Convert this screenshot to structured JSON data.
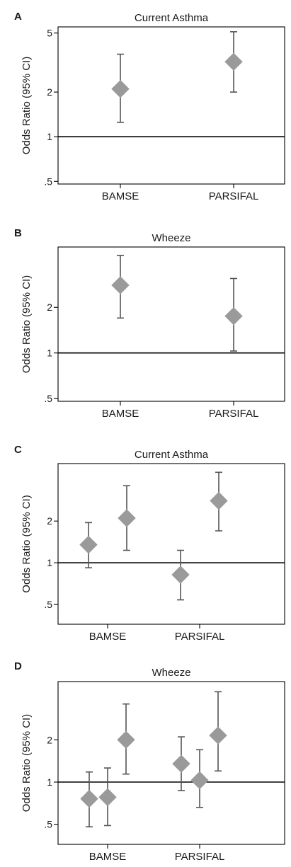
{
  "figure": {
    "ylabel": "Odds Ratio (95% CI)",
    "colors": {
      "marker": "#9a9a9a",
      "whisker": "#555555",
      "axis": "#000000",
      "reference_line": "#000000"
    }
  },
  "chart_data": [
    {
      "panel": "A",
      "type": "scatter",
      "style": "forest-plot (diamond point estimate with 95% CI whiskers)",
      "title": "Current Asthma",
      "ylabel": "Odds Ratio (95% CI)",
      "yscale": "log",
      "ylim": [
        0.48,
        5.5
      ],
      "yticks": [
        0.5,
        1,
        2,
        5
      ],
      "yticklabels": [
        ".5",
        "1",
        "2",
        "5"
      ],
      "reference_line": 1,
      "categories": [
        "BAMSE",
        "PARSIFAL"
      ],
      "points": [
        {
          "category": "BAMSE",
          "offset": 0,
          "or": 2.1,
          "lower": 1.25,
          "upper": 3.6
        },
        {
          "category": "PARSIFAL",
          "offset": 0,
          "or": 3.2,
          "lower": 2.0,
          "upper": 5.1
        }
      ]
    },
    {
      "panel": "B",
      "type": "scatter",
      "style": "forest-plot (diamond point estimate with 95% CI whiskers)",
      "title": "Wheeze",
      "ylabel": "Odds Ratio (95% CI)",
      "yscale": "log",
      "ylim": [
        0.48,
        5.0
      ],
      "yticks": [
        0.5,
        1,
        2
      ],
      "yticklabels": [
        ".5",
        "1",
        "2"
      ],
      "reference_line": 1,
      "categories": [
        "BAMSE",
        "PARSIFAL"
      ],
      "points": [
        {
          "category": "BAMSE",
          "offset": 0,
          "or": 2.8,
          "lower": 1.7,
          "upper": 4.4
        },
        {
          "category": "PARSIFAL",
          "offset": 0,
          "or": 1.75,
          "lower": 1.03,
          "upper": 3.1
        }
      ]
    },
    {
      "panel": "C",
      "type": "scatter",
      "style": "forest-plot (diamond point estimate with 95% CI whiskers)",
      "title": "Current Asthma",
      "ylabel": "Odds Ratio (95% CI)",
      "yscale": "log",
      "ylim": [
        0.36,
        5.2
      ],
      "yticks": [
        0.5,
        1,
        2
      ],
      "yticklabels": [
        ".5",
        "1",
        "2"
      ],
      "reference_line": 1,
      "categories": [
        "BAMSE",
        "PARSIFAL"
      ],
      "points": [
        {
          "category": "BAMSE",
          "offset": -1,
          "or": 1.35,
          "lower": 0.92,
          "upper": 1.95
        },
        {
          "category": "BAMSE",
          "offset": 1,
          "or": 2.1,
          "lower": 1.23,
          "upper": 3.6
        },
        {
          "category": "PARSIFAL",
          "offset": -1,
          "or": 0.82,
          "lower": 0.54,
          "upper": 1.23
        },
        {
          "category": "PARSIFAL",
          "offset": 1,
          "or": 2.8,
          "lower": 1.7,
          "upper": 4.5
        }
      ]
    },
    {
      "panel": "D",
      "type": "scatter",
      "style": "forest-plot (diamond point estimate with 95% CI whiskers)",
      "title": "Wheeze",
      "ylabel": "Odds Ratio (95% CI)",
      "yscale": "log",
      "ylim": [
        0.36,
        5.2
      ],
      "yticks": [
        0.5,
        1,
        2
      ],
      "yticklabels": [
        ".5",
        "1",
        "2"
      ],
      "reference_line": 1,
      "categories": [
        "BAMSE",
        "PARSIFAL"
      ],
      "points": [
        {
          "category": "BAMSE",
          "offset": -2,
          "or": 0.76,
          "lower": 0.48,
          "upper": 1.18
        },
        {
          "category": "BAMSE",
          "offset": 0,
          "or": 0.78,
          "lower": 0.49,
          "upper": 1.26
        },
        {
          "category": "BAMSE",
          "offset": 2,
          "or": 2.0,
          "lower": 1.14,
          "upper": 3.6
        },
        {
          "category": "PARSIFAL",
          "offset": -2,
          "or": 1.35,
          "lower": 0.87,
          "upper": 2.1
        },
        {
          "category": "PARSIFAL",
          "offset": 0,
          "or": 1.03,
          "lower": 0.66,
          "upper": 1.7
        },
        {
          "category": "PARSIFAL",
          "offset": 2,
          "or": 2.15,
          "lower": 1.2,
          "upper": 4.4
        }
      ]
    }
  ]
}
